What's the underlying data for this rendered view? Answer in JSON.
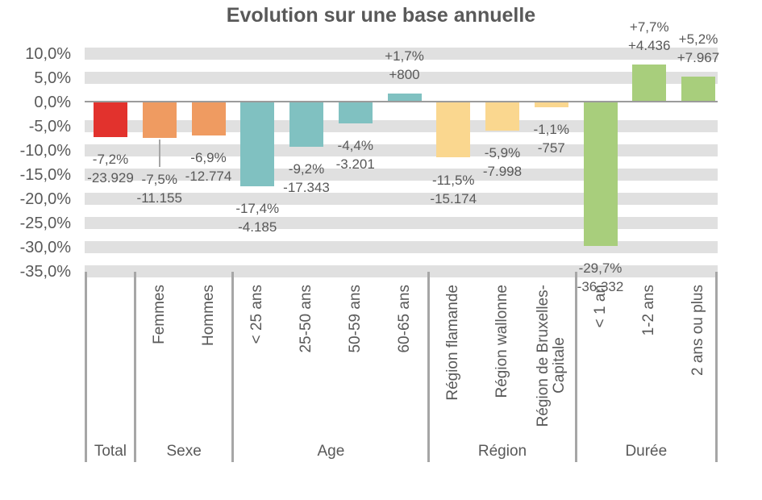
{
  "title": "Evolution sur une base annuelle",
  "colors": {
    "total": "#E2322D",
    "sexe": "#EF9B61",
    "age": "#80C1C1",
    "region": "#FAD78F",
    "duree": "#A8CE7C",
    "stripe": "#E0E0E0",
    "zero_line": "#9B9B9B",
    "divider": "#A6A6A6",
    "text": "#595959"
  },
  "y_axis": {
    "tick_labels": [
      "10,0%",
      "5,0%",
      "0,0%",
      "-5,0%",
      "-10,0%",
      "-15,0%",
      "-20,0%",
      "-25,0%",
      "-30,0%",
      "-35,0%"
    ],
    "tick_values": [
      10,
      5,
      0,
      -5,
      -10,
      -15,
      -20,
      -25,
      -30,
      -35
    ]
  },
  "chart_data": {
    "type": "bar",
    "title": "Evolution sur une base annuelle",
    "xlabel": "",
    "ylabel": "",
    "ylim": [
      -35,
      10
    ],
    "grid": "horizontal gray stripes centered on each 5% tick, none at 0%",
    "legend_position": "none",
    "groups": [
      {
        "id": "total",
        "label": "Total",
        "color_key": "total",
        "bars": [
          {
            "id": "total",
            "category": "Total",
            "category_lines": [],
            "pct": -7.2,
            "value": -23929,
            "pct_label": "-7,2%",
            "value_label": "-23.929"
          }
        ]
      },
      {
        "id": "sexe",
        "label": "Sexe",
        "color_key": "sexe",
        "bars": [
          {
            "id": "femmes",
            "category": "Femmes",
            "pct": -7.5,
            "value": -11155,
            "pct_label": "-7,5%",
            "value_label": "-11.155"
          },
          {
            "id": "hommes",
            "category": "Hommes",
            "pct": -6.9,
            "value": -12774,
            "pct_label": "-6,9%",
            "value_label": "-12.774"
          }
        ]
      },
      {
        "id": "age",
        "label": "Age",
        "color_key": "age",
        "bars": [
          {
            "id": "moins-25-ans",
            "category": "< 25 ans",
            "pct": -17.4,
            "value": -4185,
            "pct_label": "-17,4%",
            "value_label": "-4.185"
          },
          {
            "id": "25-50-ans",
            "category": "25-50 ans",
            "pct": -9.2,
            "value": -17343,
            "pct_label": "-9,2%",
            "value_label": "-17.343"
          },
          {
            "id": "50-59-ans",
            "category": "50-59 ans",
            "pct": -4.4,
            "value": -3201,
            "pct_label": "-4,4%",
            "value_label": "-3.201"
          },
          {
            "id": "60-65-ans",
            "category": "60-65 ans",
            "pct": 1.7,
            "value": 800,
            "pct_label": "+1,7%",
            "value_label": "+800"
          }
        ]
      },
      {
        "id": "region",
        "label": "Région",
        "color_key": "region",
        "bars": [
          {
            "id": "region-flamande",
            "category": "Région flamande",
            "pct": -11.5,
            "value": -15174,
            "pct_label": "-11,5%",
            "value_label": "-15.174"
          },
          {
            "id": "region-wallonne",
            "category": "Région wallonne",
            "pct": -5.9,
            "value": -7998,
            "pct_label": "-5,9%",
            "value_label": "-7.998"
          },
          {
            "id": "region-bruxelles-capitale",
            "category": "Région de Bruxelles-Capitale",
            "category_lines": [
              "Région de Bruxelles-",
              "Capitale"
            ],
            "pct": -1.1,
            "value": -757,
            "pct_label": "-1,1%",
            "value_label": "-757"
          }
        ]
      },
      {
        "id": "duree",
        "label": "Durée",
        "color_key": "duree",
        "bars": [
          {
            "id": "moins-1-an",
            "category": "< 1 an",
            "pct": -29.7,
            "value": -36332,
            "pct_label": "-29,7%",
            "value_label": "-36.332"
          },
          {
            "id": "1-2-ans",
            "category": "1-2 ans",
            "pct": 7.7,
            "value": 4436,
            "pct_label": "+7,7%",
            "value_label": "+4.436"
          },
          {
            "id": "2-ans-ou-plus",
            "category": "2 ans ou plus",
            "pct": 5.2,
            "value": 7967,
            "pct_label": "+5,2%",
            "value_label": "+7.967"
          }
        ]
      }
    ]
  }
}
